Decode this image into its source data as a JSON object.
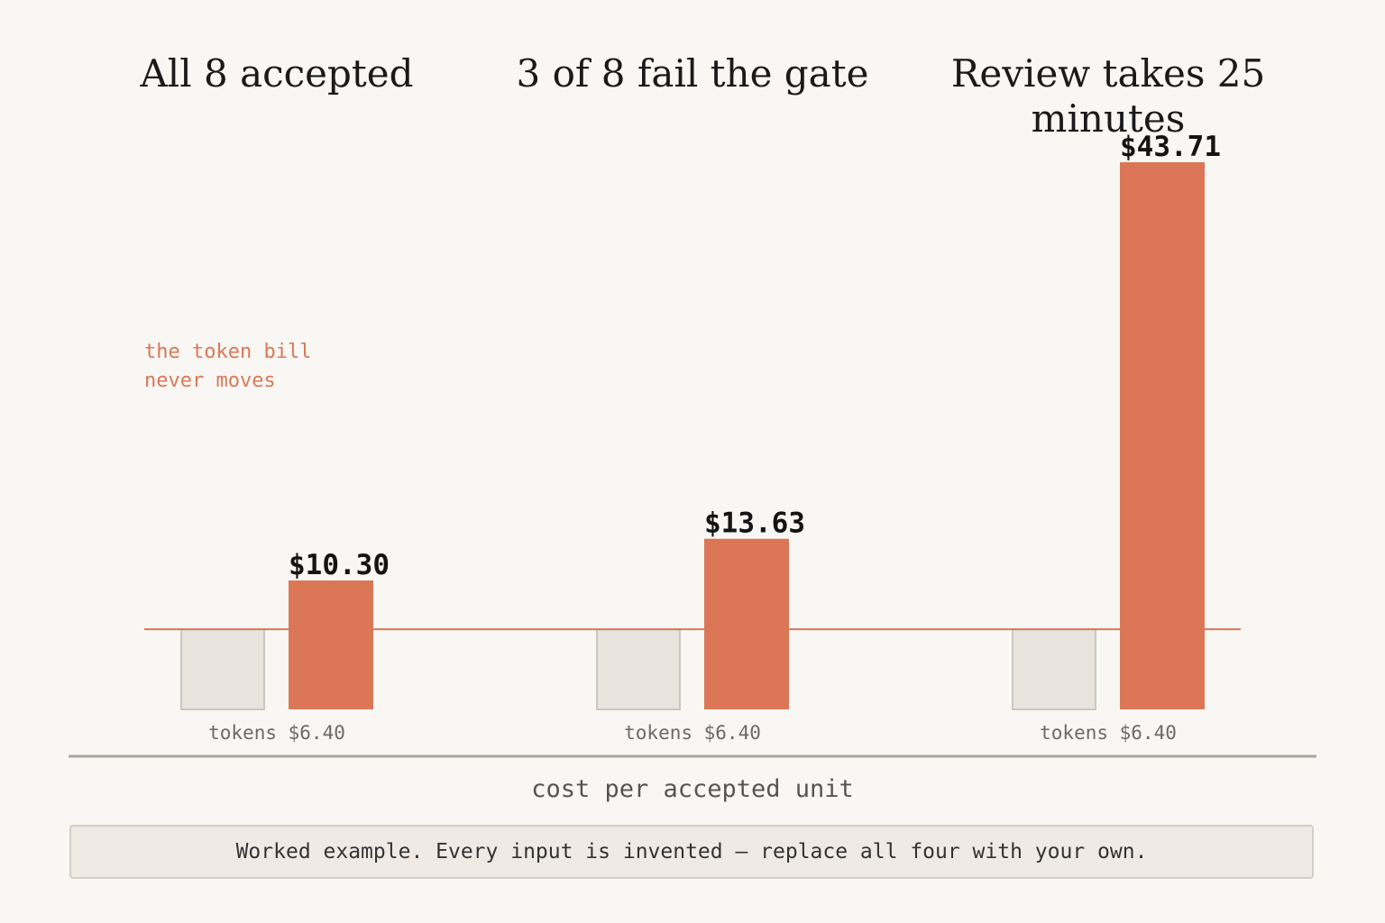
{
  "chart_data": {
    "type": "bar",
    "categories": [
      "All 8 accepted",
      "3 of 8 fail the gate",
      "Review takes 25 minutes"
    ],
    "series": [
      {
        "values": [
          6.4,
          6.4,
          6.4
        ],
        "value_labels": [
          "tokens $6.40",
          "tokens $6.40",
          "tokens $6.40"
        ],
        "color": "#e8e4dd"
      },
      {
        "values": [
          10.3,
          13.63,
          43.71
        ],
        "value_labels": [
          "$10.30",
          "$13.63",
          "$43.71"
        ],
        "color": "#db7757"
      }
    ],
    "xlabel": "cost per accepted unit",
    "ylim": [
      0,
      43.71
    ],
    "reference_line": {
      "value": 6.4,
      "color": "#db7757"
    },
    "annotation": {
      "lines": [
        "the token bill",
        "never moves"
      ],
      "color": "#db7757"
    },
    "grid": false
  },
  "footer": {
    "note": "Worked example. Every input is invented — replace all four with your own."
  }
}
